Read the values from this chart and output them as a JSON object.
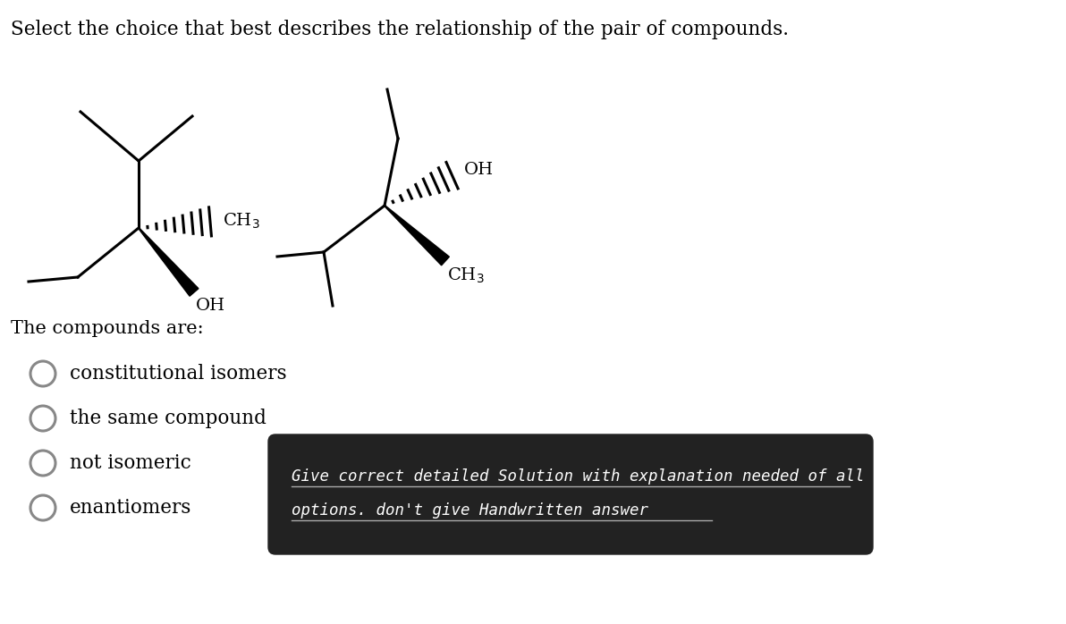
{
  "title": "Select the choice that best describes the relationship of the pair of compounds.",
  "title_fontsize": 15.5,
  "compounds_label": "The compounds are:",
  "options": [
    "constitutional isomers",
    "the same compound",
    "not isomeric",
    "enantiomers"
  ],
  "dark_box_text_line1": "Give correct detailed Solution with explanation needed of all",
  "dark_box_text_line2": "options. don't give Handwritten answer",
  "dark_box_color": "#222222",
  "dark_box_text_color": "#ffffff",
  "background_color": "#ffffff",
  "text_color": "#000000",
  "font_family": "serif"
}
